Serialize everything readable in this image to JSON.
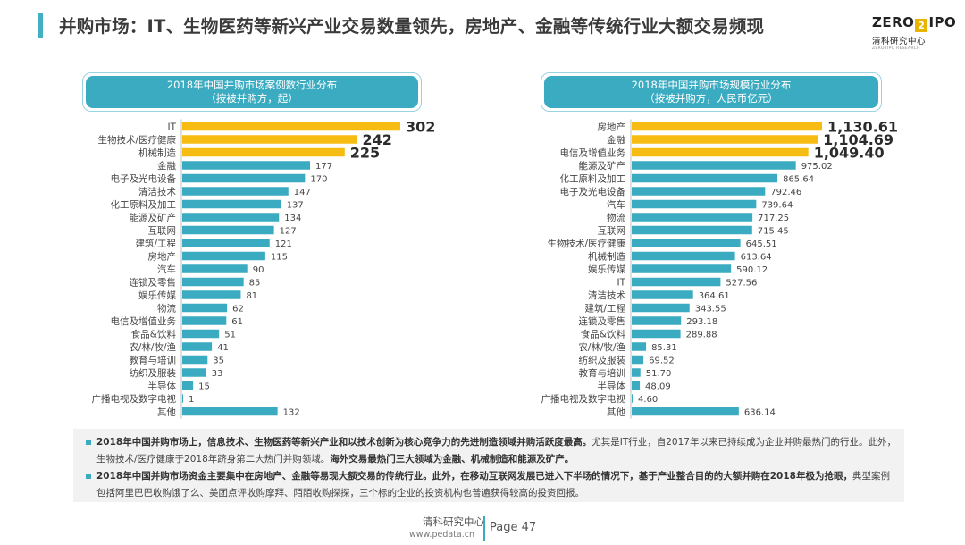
{
  "header": {
    "title": "并购市场：IT、生物医药等新兴产业交易数量领先，房地产、金融等传统行业大额交易频现",
    "logo_text_left": "ZERO",
    "logo_text_mid": "2",
    "logo_text_right": "IPO",
    "logo_cn": "清科研究中心",
    "logo_sub": "ZERO2IPO RESEARCH"
  },
  "colors": {
    "accent_teal": "#3aabc0",
    "accent_teal_dark": "#2a97ad",
    "highlight_yellow": "#f7bc11",
    "title_accent": "#41b0c4"
  },
  "chart_data": [
    {
      "type": "bar",
      "orientation": "horizontal",
      "title": "2018年中国并购市场案例数行业分布",
      "subtitle": "（按被并购方，起）",
      "categories": [
        "IT",
        "生物技术/医疗健康",
        "机械制造",
        "金融",
        "电子及光电设备",
        "清洁技术",
        "化工原料及加工",
        "能源及矿产",
        "互联网",
        "建筑/工程",
        "房地产",
        "汽车",
        "连锁及零售",
        "娱乐传媒",
        "物流",
        "电信及增值业务",
        "食品&饮料",
        "农/林/牧/渔",
        "教育与培训",
        "纺织及服装",
        "半导体",
        "广播电视及数字电视",
        "其他"
      ],
      "values": [
        302,
        242,
        225,
        177,
        170,
        147,
        137,
        134,
        127,
        121,
        115,
        90,
        85,
        81,
        62,
        61,
        51,
        41,
        35,
        33,
        15,
        1,
        132
      ],
      "labels": [
        "302",
        "242",
        "225",
        "177",
        "170",
        "147",
        "137",
        "134",
        "127",
        "121",
        "115",
        "90",
        "85",
        "81",
        "62",
        "61",
        "51",
        "41",
        "35",
        "33",
        "15",
        "1",
        "132"
      ],
      "highlight_top": 3,
      "xlim": [
        0,
        302
      ],
      "grid": false,
      "legend": "none"
    },
    {
      "type": "bar",
      "orientation": "horizontal",
      "title": "2018年中国并购市场规模行业分布",
      "subtitle": "（按被并购方，人民币亿元）",
      "categories": [
        "房地产",
        "金融",
        "电信及增值业务",
        "能源及矿产",
        "化工原料及加工",
        "电子及光电设备",
        "汽车",
        "物流",
        "互联网",
        "生物技术/医疗健康",
        "机械制造",
        "娱乐传媒",
        "IT",
        "清洁技术",
        "建筑/工程",
        "连锁及零售",
        "食品&饮料",
        "农/林/牧/渔",
        "纺织及服装",
        "教育与培训",
        "半导体",
        "广播电视及数字电视",
        "其他"
      ],
      "values": [
        1130.61,
        1104.69,
        1049.4,
        975.02,
        865.64,
        792.46,
        739.64,
        717.25,
        715.45,
        645.51,
        613.64,
        590.12,
        527.56,
        364.61,
        343.55,
        293.18,
        289.88,
        85.31,
        69.52,
        51.7,
        48.09,
        4.6,
        636.14
      ],
      "labels": [
        "1,130.61",
        "1,104.69",
        "1,049.40",
        "975.02",
        "865.64",
        "792.46",
        "739.64",
        "717.25",
        "715.45",
        "645.51",
        "613.64",
        "590.12",
        "527.56",
        "364.61",
        "343.55",
        "293.18",
        "289.88",
        "85.31",
        "69.52",
        "51.70",
        "48.09",
        "4.60",
        "636.14"
      ],
      "highlight_top": 3,
      "xlim": [
        0,
        1130.61
      ],
      "grid": false,
      "legend": "none"
    }
  ],
  "notes": [
    {
      "bold": "2018年中国并购市场上，信息技术、生物医药等新兴产业和以技术创新为核心竞争力的先进制造领域并购活跃度最高。",
      "normal": "尤其是IT行业，自2017年以来已持续成为企业并购最热门的行业。此外，生物技术/医疗健康于2018年跻身第二大热门并购领域。",
      "bold2": "海外交易最热门三大领域为金融、机械制造和能源及矿产。",
      "normal2": ""
    },
    {
      "bold": "2018年中国并购市场资金主要集中在房地产、金融等易现大额交易的传统行业。此外，在移动互联网发展已进入下半场的情况下，基于产业整合目的的大额并购在2018年极为抢眼，",
      "normal": "典型案例包括阿里巴巴收购饿了么、美团点评收购摩拜、陌陌收购探探，三个标的企业的投资机构也普遍获得较高的投资回报。",
      "bold2": "",
      "normal2": ""
    }
  ],
  "footer": {
    "org": "清科研究中心",
    "url": "www.pedata.cn",
    "page": "Page 47"
  }
}
